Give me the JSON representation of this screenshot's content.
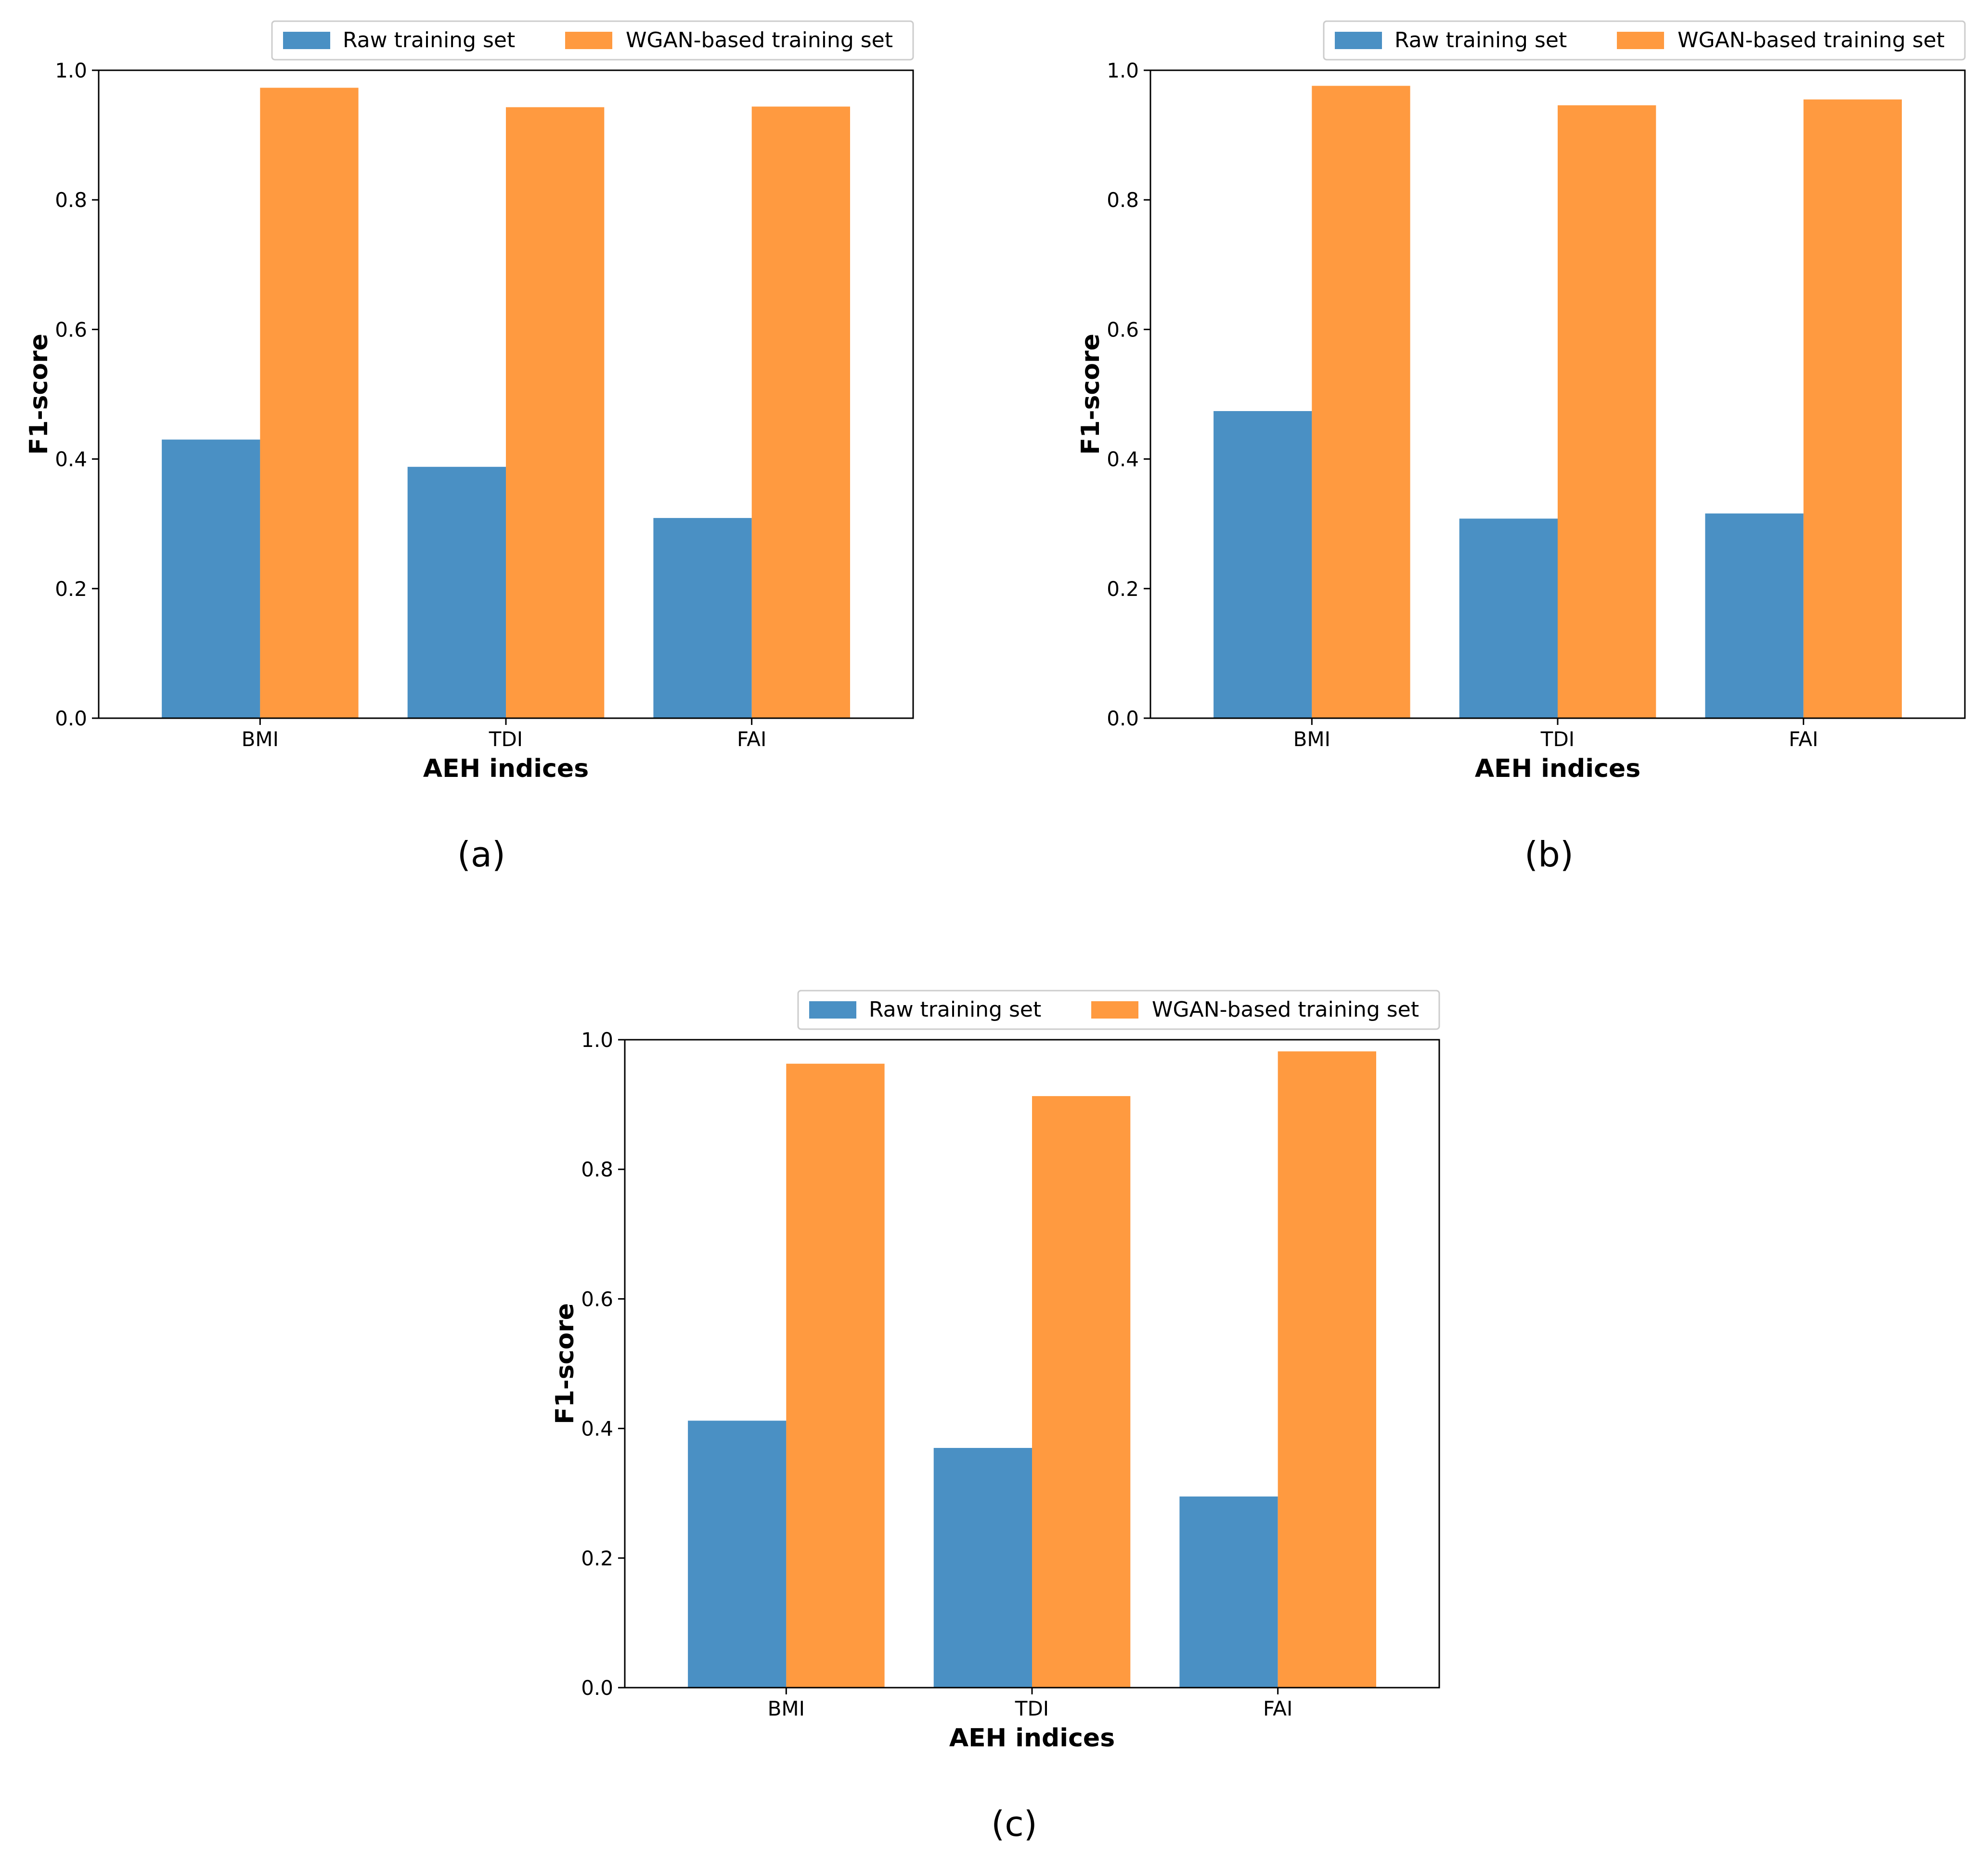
{
  "legend": {
    "raw_label": "Raw training set",
    "wgan_label": "WGAN-based training set"
  },
  "colors": {
    "raw": "#4a90c4",
    "wgan": "#ff9a40",
    "axis": "#000000"
  },
  "chart_data": [
    {
      "panel": "(a)",
      "type": "bar",
      "categories": [
        "BMI",
        "TDI",
        "FAI"
      ],
      "series": [
        {
          "name": "Raw training set",
          "values": [
            0.43,
            0.388,
            0.309
          ]
        },
        {
          "name": "WGAN-based training set",
          "values": [
            0.973,
            0.943,
            0.944
          ]
        }
      ],
      "xlabel": "AEH indices",
      "ylabel": "F1-score",
      "ylim": [
        0,
        1.0
      ],
      "yticks": [
        "0.0",
        "0.2",
        "0.4",
        "0.6",
        "0.8",
        "1.0"
      ],
      "legend_position": "top"
    },
    {
      "panel": "(b)",
      "type": "bar",
      "categories": [
        "BMI",
        "TDI",
        "FAI"
      ],
      "series": [
        {
          "name": "Raw training set",
          "values": [
            0.474,
            0.308,
            0.316
          ]
        },
        {
          "name": "WGAN-based training set",
          "values": [
            0.976,
            0.946,
            0.955
          ]
        }
      ],
      "xlabel": "AEH indices",
      "ylabel": "F1-score",
      "ylim": [
        0,
        1.0
      ],
      "yticks": [
        "0.0",
        "0.2",
        "0.4",
        "0.6",
        "0.8",
        "1.0"
      ],
      "legend_position": "top"
    },
    {
      "panel": "(c)",
      "type": "bar",
      "categories": [
        "BMI",
        "TDI",
        "FAI"
      ],
      "series": [
        {
          "name": "Raw training set",
          "values": [
            0.412,
            0.37,
            0.295
          ]
        },
        {
          "name": "WGAN-based training set",
          "values": [
            0.963,
            0.913,
            0.982
          ]
        }
      ],
      "xlabel": "AEH indices",
      "ylabel": "F1-score",
      "ylim": [
        0,
        1.0
      ],
      "yticks": [
        "0.0",
        "0.2",
        "0.4",
        "0.6",
        "0.8",
        "1.0"
      ],
      "legend_position": "top"
    }
  ]
}
